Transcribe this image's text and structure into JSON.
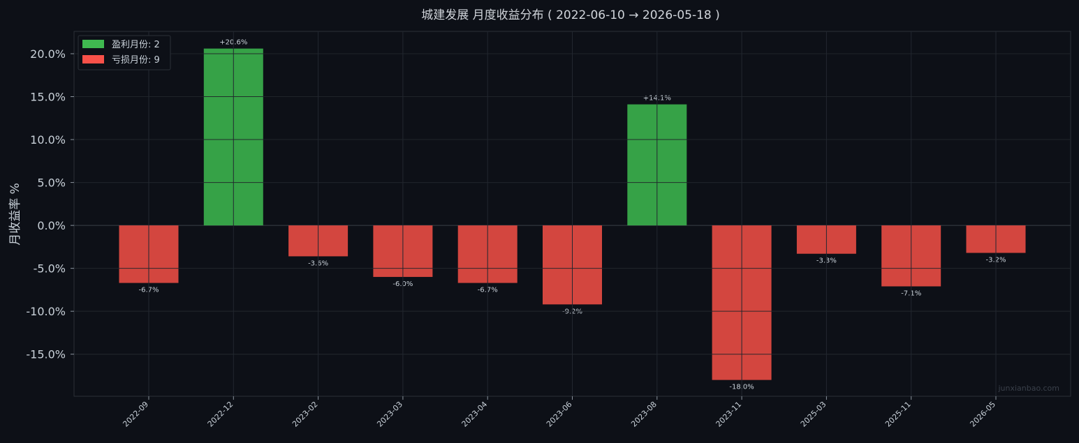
{
  "chart_data": {
    "type": "bar",
    "title": "城建发展 月度收益分布 ( 2022-06-10 → 2026-05-18 )",
    "ylabel": "月收益率 %",
    "xlabel": "",
    "ylim": [
      -19.9,
      22.6
    ],
    "yticks": [
      20.0,
      15.0,
      10.0,
      5.0,
      0.0,
      -5.0,
      -10.0,
      -15.0
    ],
    "ytick_labels": [
      "20.0%",
      "15.0%",
      "10.0%",
      "5.0%",
      "0.0%",
      "-5.0%",
      "-10.0%",
      "-15.0%"
    ],
    "categories": [
      "2022-09",
      "2022-12",
      "2023-02",
      "2023-03",
      "2023-04",
      "2023-06",
      "2023-08",
      "2023-11",
      "2025-03",
      "2025-11",
      "2026-05"
    ],
    "values": [
      -6.7,
      20.6,
      -3.6,
      -6.0,
      -6.7,
      -9.2,
      14.1,
      -18.0,
      -3.3,
      -7.1,
      -3.2
    ],
    "data_labels": [
      "-6.7%",
      "+20.6%",
      "-3.6%",
      "-6.0%",
      "-6.7%",
      "-9.2%",
      "+14.1%",
      "-18.0%",
      "-3.3%",
      "-7.1%",
      "-3.2%"
    ],
    "legend": [
      {
        "label": "盈利月份: 2",
        "color": "#3fb950"
      },
      {
        "label": "亏损月份: 9",
        "color": "#f85149"
      }
    ],
    "legend_position": "top-left",
    "grid": true,
    "colors": {
      "positive": "#36a247",
      "negative": "#d3463f",
      "background": "#0d1017",
      "grid": "#262b33"
    },
    "watermark": "junxianbao.com"
  }
}
